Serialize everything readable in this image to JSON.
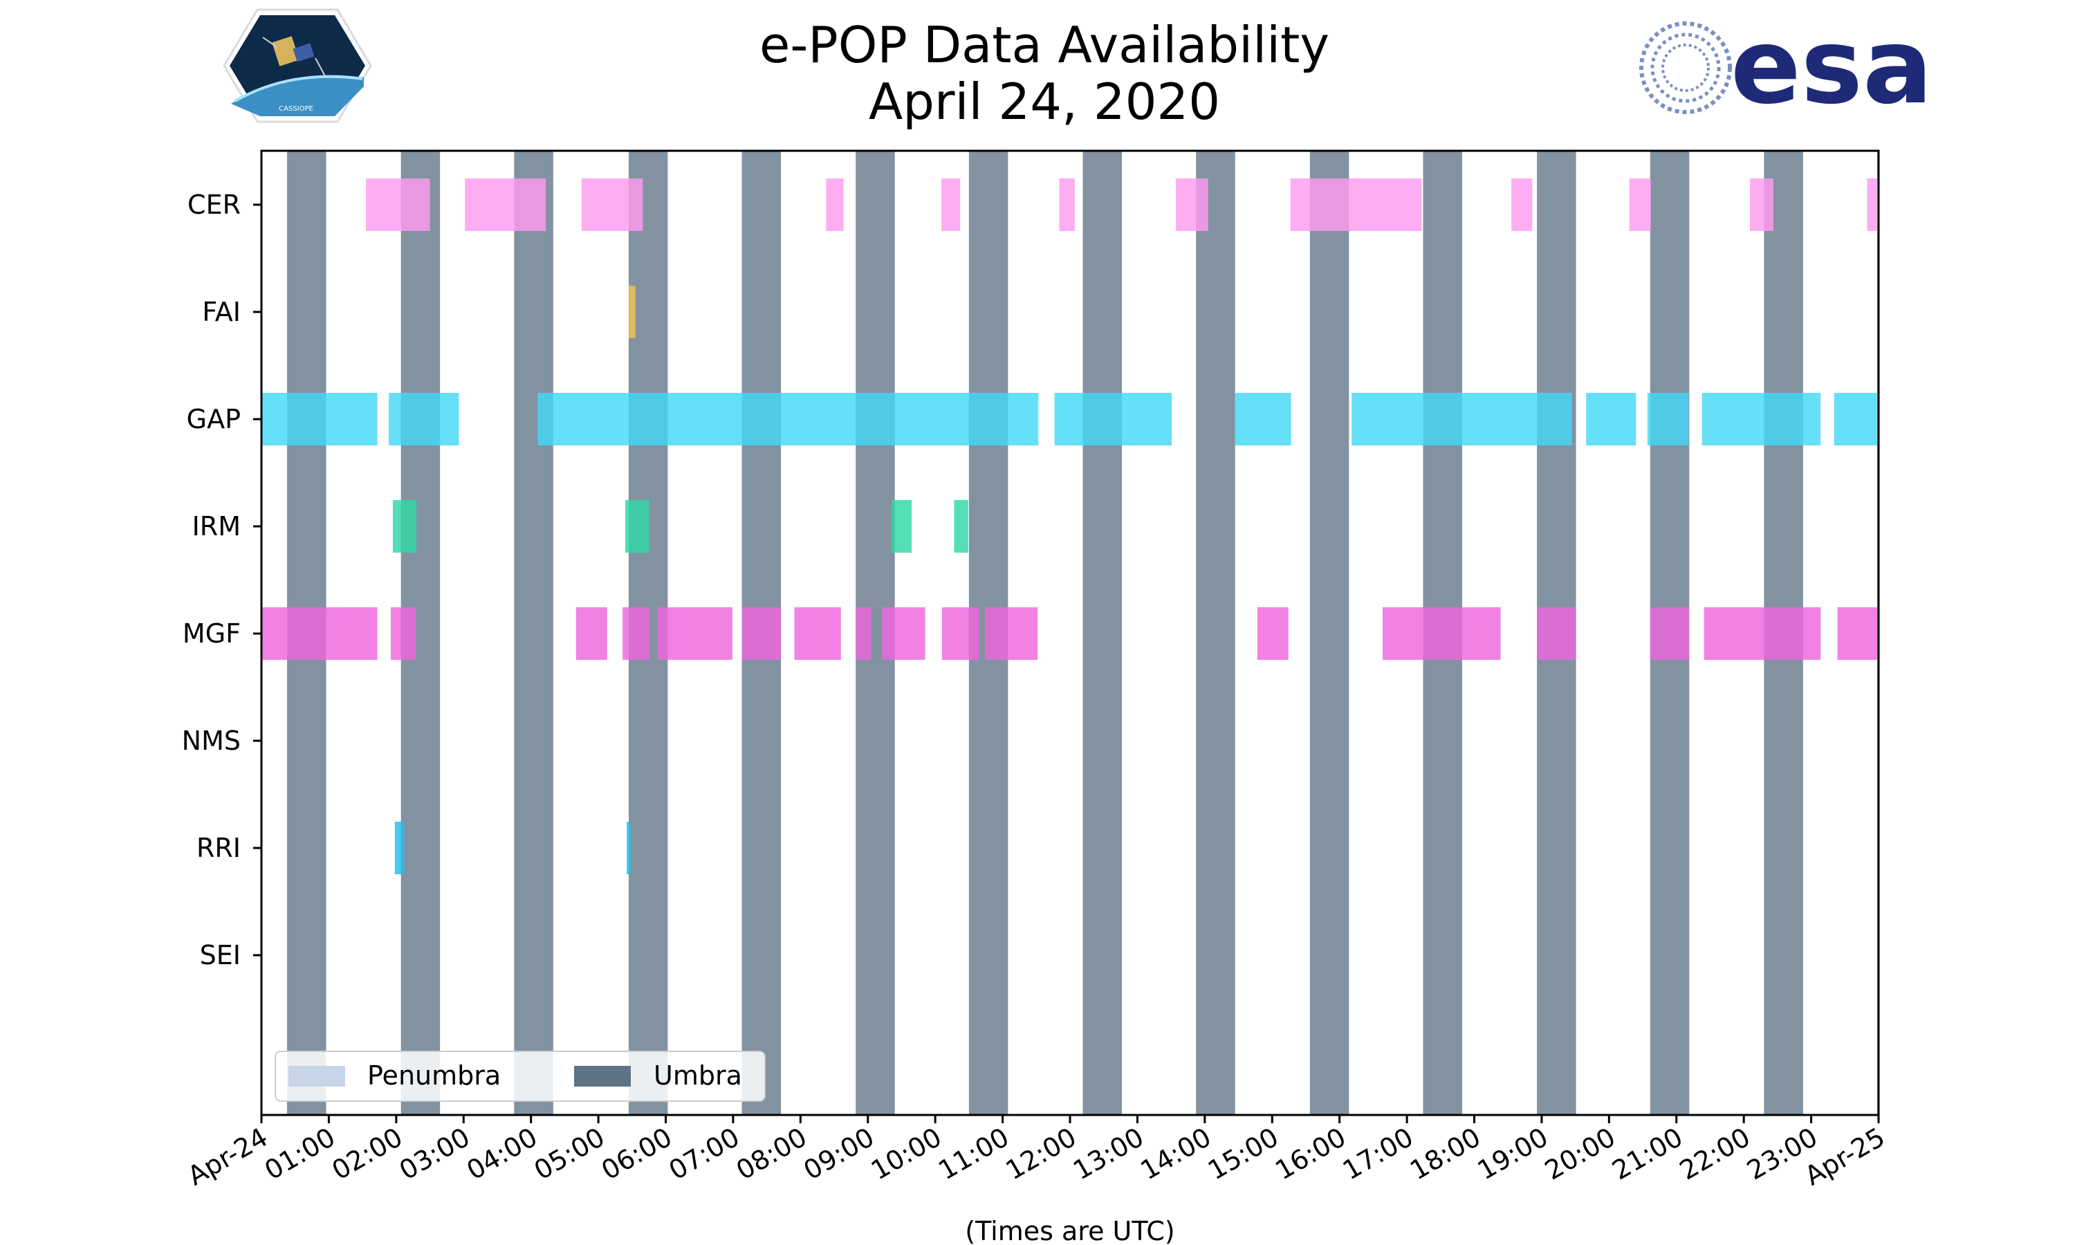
{
  "header": {
    "title_line1": "e-POP Data Availability",
    "title_line2": "April 24, 2020"
  },
  "logos": {
    "left_caption": "CASSIOPE",
    "right_wordmark": "esa"
  },
  "chart_data": {
    "type": "timeline",
    "title": "e-POP Data Availability\nApril 24, 2020",
    "xlabel": "(Times are UTC)",
    "ylabel": "",
    "x_units": "hours UTC since 2020-04-24 00:00",
    "xlim": [
      0,
      24
    ],
    "xtick_labels": [
      "Apr-24",
      "01:00",
      "02:00",
      "03:00",
      "04:00",
      "05:00",
      "06:00",
      "07:00",
      "08:00",
      "09:00",
      "10:00",
      "11:00",
      "12:00",
      "13:00",
      "14:00",
      "15:00",
      "16:00",
      "17:00",
      "18:00",
      "19:00",
      "20:00",
      "21:00",
      "22:00",
      "23:00",
      "Apr-25"
    ],
    "instruments": [
      "CER",
      "FAI",
      "GAP",
      "IRM",
      "MGF",
      "NMS",
      "RRI",
      "SEI"
    ],
    "colors": {
      "CER": "#ff9bef",
      "FAI": "#f3c34a",
      "GAP": "#44d8f6",
      "IRM": "#2fd8a6",
      "MGF": "#ee66dd",
      "NMS": "#999999",
      "RRI": "#22bfe6",
      "SEI": "#999999",
      "umbra": "#5f7386",
      "penumbra": "#c6d6e8"
    },
    "umbra_intervals": [
      [
        0.38,
        0.96
      ],
      [
        2.07,
        2.65
      ],
      [
        3.75,
        4.33
      ],
      [
        5.45,
        6.03
      ],
      [
        7.13,
        7.71
      ],
      [
        8.82,
        9.4
      ],
      [
        10.5,
        11.08
      ],
      [
        12.19,
        12.77
      ],
      [
        13.87,
        14.45
      ],
      [
        15.56,
        16.14
      ],
      [
        17.24,
        17.82
      ],
      [
        18.93,
        19.51
      ],
      [
        20.61,
        21.19
      ],
      [
        22.3,
        22.88
      ],
      [
        23.98,
        24.0
      ]
    ],
    "penumbra_intervals": [],
    "series": [
      {
        "name": "CER",
        "intervals": [
          [
            1.55,
            2.5
          ],
          [
            3.02,
            4.22
          ],
          [
            4.75,
            5.66
          ],
          [
            8.38,
            8.64
          ],
          [
            10.09,
            10.37
          ],
          [
            11.84,
            12.07
          ],
          [
            13.57,
            14.05
          ],
          [
            15.27,
            17.22
          ],
          [
            18.55,
            18.86
          ],
          [
            20.3,
            20.62
          ],
          [
            22.09,
            22.44
          ],
          [
            23.83,
            24.0
          ]
        ]
      },
      {
        "name": "FAI",
        "intervals": [
          [
            5.45,
            5.55
          ]
        ]
      },
      {
        "name": "GAP",
        "intervals": [
          [
            0.0,
            1.72
          ],
          [
            1.89,
            2.93
          ],
          [
            4.1,
            11.53
          ],
          [
            11.77,
            13.51
          ],
          [
            14.45,
            15.28
          ],
          [
            16.18,
            19.45
          ],
          [
            19.66,
            20.4
          ],
          [
            20.57,
            21.18
          ],
          [
            21.38,
            23.14
          ],
          [
            23.34,
            24.0
          ]
        ]
      },
      {
        "name": "IRM",
        "intervals": [
          [
            1.95,
            2.3
          ],
          [
            5.4,
            5.76
          ],
          [
            9.35,
            9.65
          ],
          [
            10.28,
            10.49
          ]
        ]
      },
      {
        "name": "MGF",
        "intervals": [
          [
            0.0,
            1.72
          ],
          [
            1.92,
            2.29
          ],
          [
            4.67,
            5.13
          ],
          [
            5.36,
            5.76
          ],
          [
            5.88,
            6.99
          ],
          [
            7.13,
            7.71
          ],
          [
            7.91,
            8.6
          ],
          [
            8.82,
            9.05
          ],
          [
            9.21,
            9.85
          ],
          [
            10.1,
            10.65
          ],
          [
            10.74,
            11.52
          ],
          [
            14.78,
            15.24
          ],
          [
            16.64,
            18.39
          ],
          [
            18.93,
            19.51
          ],
          [
            20.61,
            21.19
          ],
          [
            21.41,
            23.14
          ],
          [
            23.39,
            24.0
          ]
        ]
      },
      {
        "name": "NMS",
        "intervals": []
      },
      {
        "name": "RRI",
        "intervals": [
          [
            1.98,
            2.12
          ],
          [
            5.42,
            5.48
          ]
        ]
      },
      {
        "name": "SEI",
        "intervals": []
      }
    ],
    "legend": {
      "placement": "lower-left",
      "entries": [
        {
          "label": "Penumbra",
          "color": "#c6d6e8"
        },
        {
          "label": "Umbra",
          "color": "#5f7386"
        }
      ]
    },
    "grid": false
  }
}
